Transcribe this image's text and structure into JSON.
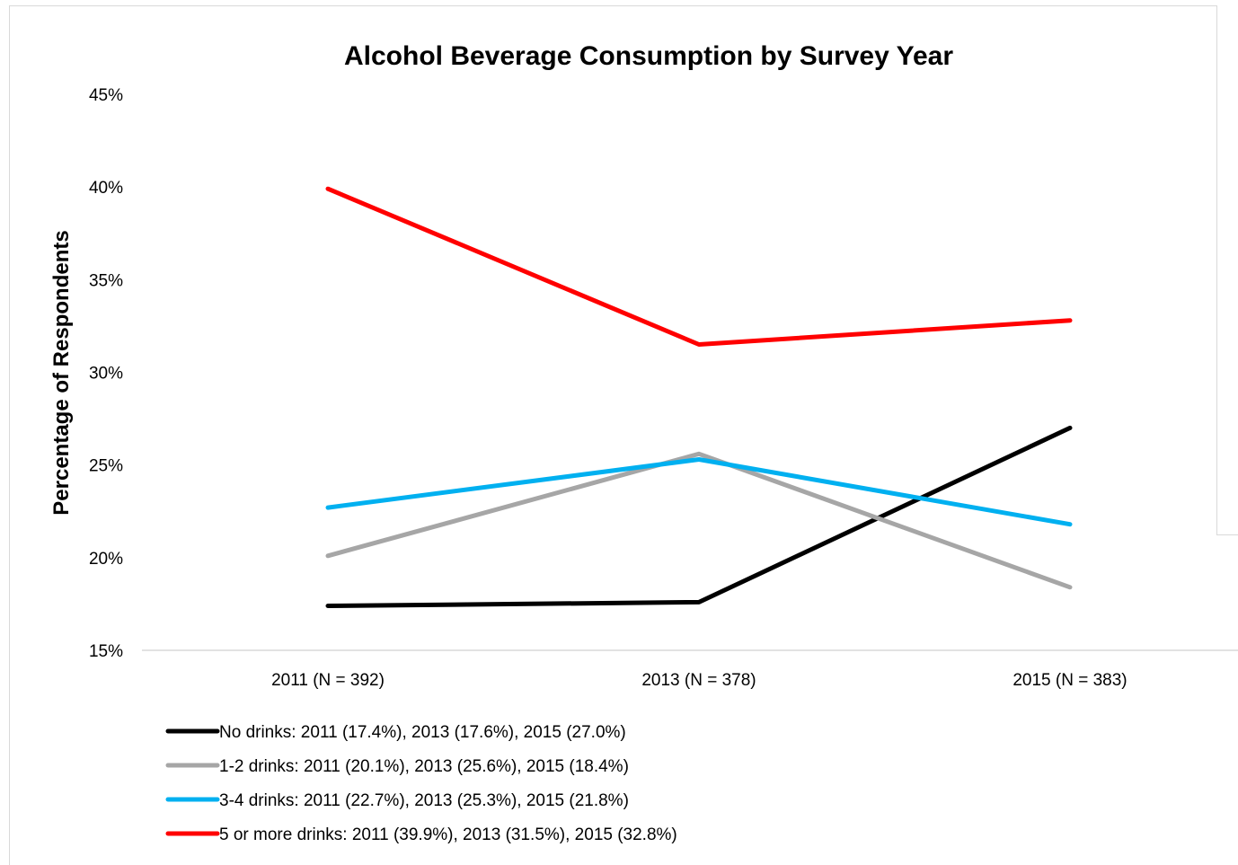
{
  "chart_data": {
    "type": "line",
    "title": "Alcohol Beverage Consumption by Survey Year",
    "xlabel": "",
    "ylabel": "Percentage of Respondents",
    "categories": [
      "2011 (N = 392)",
      "2013 (N = 378)",
      "2015 (N = 383)"
    ],
    "ylim": [
      15,
      45
    ],
    "yticks": [
      15,
      20,
      25,
      30,
      35,
      40,
      45
    ],
    "ytick_labels": [
      "15%",
      "20%",
      "25%",
      "30%",
      "35%",
      "40%",
      "45%"
    ],
    "grid": false,
    "legend_position": "bottom-left",
    "series": [
      {
        "legend": "No drinks: 2011 (17.4%), 2013 (17.6%), 2015 (27.0%)",
        "values": [
          17.4,
          17.6,
          27.0
        ],
        "color": "#000000"
      },
      {
        "legend": "1-2 drinks: 2011 (20.1%), 2013 (25.6%), 2015 (18.4%)",
        "values": [
          20.1,
          25.6,
          18.4
        ],
        "color": "#a6a6a6"
      },
      {
        "legend": "3-4 drinks: 2011 (22.7%), 2013 (25.3%), 2015 (21.8%)",
        "values": [
          22.7,
          25.3,
          21.8
        ],
        "color": "#00b0f0"
      },
      {
        "legend": "5 or more drinks: 2011 (39.9%), 2013 (31.5%), 2015 (32.8%)",
        "values": [
          39.9,
          31.5,
          32.8
        ],
        "color": "#ff0000"
      }
    ]
  }
}
